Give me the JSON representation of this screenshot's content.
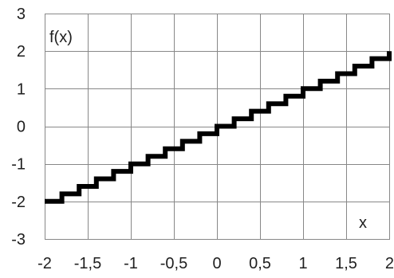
{
  "chart_data": {
    "type": "line",
    "xlabel": "x",
    "ylabel": "f(x)",
    "xlim": [
      -2,
      2
    ],
    "ylim": [
      -3,
      3
    ],
    "x_ticks": [
      -2,
      -1.5,
      -1,
      -0.5,
      0,
      0.5,
      1,
      1.5,
      2
    ],
    "x_tick_labels": [
      "-2",
      "-1,5",
      "-1",
      "-0,5",
      "0",
      "0,5",
      "1",
      "1,5",
      "2"
    ],
    "y_ticks": [
      -3,
      -2,
      -1,
      0,
      1,
      2,
      3
    ],
    "y_tick_labels": [
      "-3",
      "-2",
      "-1",
      "0",
      "1",
      "2",
      "3"
    ],
    "grid": true,
    "series": [
      {
        "color": "#000000",
        "kind": "step",
        "x": [
          -2,
          -1.8,
          -1.6,
          -1.4,
          -1.2,
          -1.0,
          -0.8,
          -0.6,
          -0.4,
          -0.2,
          0.0,
          0.2,
          0.4,
          0.6,
          0.8,
          1.0,
          1.2,
          1.4,
          1.6,
          1.8,
          2.0
        ],
        "y": [
          -2,
          -1.8,
          -1.6,
          -1.4,
          -1.2,
          -1.0,
          -0.8,
          -0.6,
          -0.4,
          -0.2,
          0.0,
          0.2,
          0.4,
          0.6,
          0.8,
          1.0,
          1.2,
          1.4,
          1.6,
          1.8,
          2.0
        ]
      }
    ]
  }
}
